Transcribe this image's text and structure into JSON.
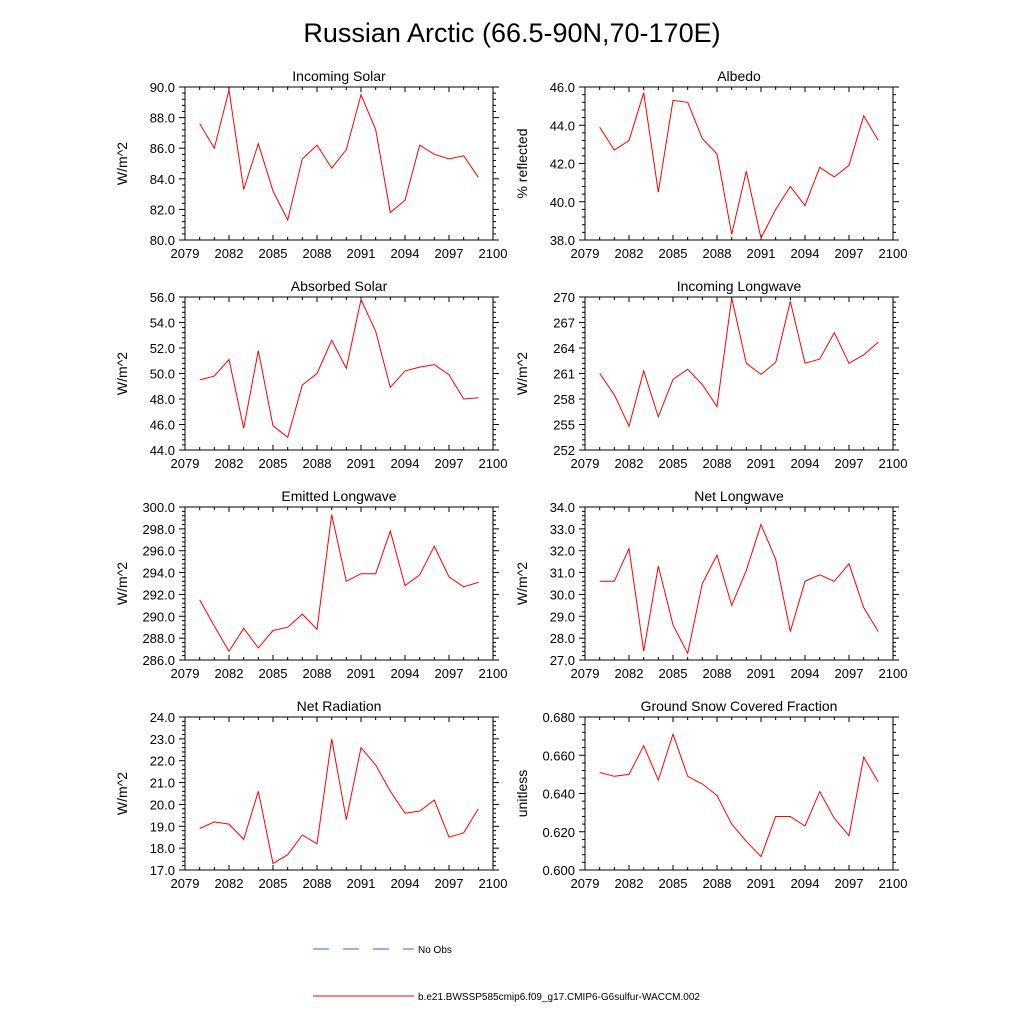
{
  "figure_title": "Russian Arctic (66.5-90N,70-170E)",
  "colors": {
    "model_line": "#ff0000",
    "obs_line": "#4b57c8",
    "axis": "#000000"
  },
  "legend": {
    "obs_label": "No Obs",
    "model_label": "b.e21.BWSSP585cmip6.f09_g17.CMIP6-G6sulfur-WACCM.002"
  },
  "chart_data": [
    {
      "type": "line",
      "title": "Incoming Solar",
      "ylabel": "W/m^2",
      "xlim": [
        2079,
        2100
      ],
      "ylim": [
        80,
        90
      ],
      "yticks": [
        80,
        82,
        84,
        86,
        88,
        90
      ],
      "ytick_labels": [
        "80.0",
        "82.0",
        "84.0",
        "86.0",
        "88.0",
        "90.0"
      ],
      "xticks": [
        2079,
        2082,
        2085,
        2088,
        2091,
        2094,
        2097,
        2100
      ],
      "x": [
        2080,
        2081,
        2082,
        2083,
        2084,
        2085,
        2086,
        2087,
        2088,
        2089,
        2090,
        2091,
        2092,
        2093,
        2094,
        2095,
        2096,
        2097,
        2098,
        2099
      ],
      "series": [
        {
          "values": [
            87.6,
            86.0,
            89.8,
            83.3,
            86.3,
            83.2,
            81.3,
            85.3,
            86.2,
            84.7,
            85.9,
            89.5,
            87.2,
            81.8,
            82.6,
            86.2,
            85.6,
            85.3,
            85.5,
            84.1
          ]
        }
      ]
    },
    {
      "type": "line",
      "title": "Albedo",
      "ylabel": "% reflected",
      "xlim": [
        2079,
        2100
      ],
      "ylim": [
        38,
        46
      ],
      "yticks": [
        38,
        40,
        42,
        44,
        46
      ],
      "ytick_labels": [
        "38.0",
        "40.0",
        "42.0",
        "44.0",
        "46.0"
      ],
      "xticks": [
        2079,
        2082,
        2085,
        2088,
        2091,
        2094,
        2097,
        2100
      ],
      "x": [
        2080,
        2081,
        2082,
        2083,
        2084,
        2085,
        2086,
        2087,
        2088,
        2089,
        2090,
        2091,
        2092,
        2093,
        2094,
        2095,
        2096,
        2097,
        2098,
        2099
      ],
      "series": [
        {
          "values": [
            43.9,
            42.7,
            43.2,
            45.7,
            40.5,
            45.3,
            45.2,
            43.3,
            42.5,
            38.3,
            41.6,
            38.1,
            39.6,
            40.8,
            39.8,
            41.8,
            41.3,
            41.9,
            44.5,
            43.2
          ]
        }
      ]
    },
    {
      "type": "line",
      "title": "Absorbed Solar",
      "ylabel": "W/m^2",
      "xlim": [
        2079,
        2100
      ],
      "ylim": [
        44,
        56
      ],
      "yticks": [
        44,
        46,
        48,
        50,
        52,
        54,
        56
      ],
      "ytick_labels": [
        "44.0",
        "46.0",
        "48.0",
        "50.0",
        "52.0",
        "54.0",
        "56.0"
      ],
      "xticks": [
        2079,
        2082,
        2085,
        2088,
        2091,
        2094,
        2097,
        2100
      ],
      "x": [
        2080,
        2081,
        2082,
        2083,
        2084,
        2085,
        2086,
        2087,
        2088,
        2089,
        2090,
        2091,
        2092,
        2093,
        2094,
        2095,
        2096,
        2097,
        2098,
        2099
      ],
      "series": [
        {
          "values": [
            49.5,
            49.8,
            51.1,
            45.7,
            51.8,
            45.9,
            45.0,
            49.1,
            50.0,
            52.6,
            50.4,
            55.8,
            53.3,
            48.9,
            50.2,
            50.5,
            50.7,
            49.9,
            48.0,
            48.1
          ]
        }
      ]
    },
    {
      "type": "line",
      "title": "Incoming Longwave",
      "ylabel": "W/m^2",
      "xlim": [
        2079,
        2100
      ],
      "ylim": [
        252,
        270
      ],
      "yticks": [
        252,
        255,
        258,
        261,
        264,
        267,
        270
      ],
      "ytick_labels": [
        "252",
        "255",
        "258",
        "261",
        "264",
        "267",
        "270"
      ],
      "xticks": [
        2079,
        2082,
        2085,
        2088,
        2091,
        2094,
        2097,
        2100
      ],
      "x": [
        2080,
        2081,
        2082,
        2083,
        2084,
        2085,
        2086,
        2087,
        2088,
        2089,
        2090,
        2091,
        2092,
        2093,
        2094,
        2095,
        2096,
        2097,
        2098,
        2099
      ],
      "series": [
        {
          "values": [
            261.0,
            258.5,
            254.8,
            261.3,
            255.9,
            260.3,
            261.5,
            259.7,
            257.1,
            269.9,
            262.2,
            260.9,
            262.3,
            269.5,
            262.2,
            262.7,
            265.8,
            262.2,
            263.2,
            264.7
          ]
        }
      ]
    },
    {
      "type": "line",
      "title": "Emitted Longwave",
      "ylabel": "W/m^2",
      "xlim": [
        2079,
        2100
      ],
      "ylim": [
        286,
        300
      ],
      "yticks": [
        286,
        288,
        290,
        292,
        294,
        296,
        298,
        300
      ],
      "ytick_labels": [
        "286.0",
        "288.0",
        "290.0",
        "292.0",
        "294.0",
        "296.0",
        "298.0",
        "300.0"
      ],
      "xticks": [
        2079,
        2082,
        2085,
        2088,
        2091,
        2094,
        2097,
        2100
      ],
      "x": [
        2080,
        2081,
        2082,
        2083,
        2084,
        2085,
        2086,
        2087,
        2088,
        2089,
        2090,
        2091,
        2092,
        2093,
        2094,
        2095,
        2096,
        2097,
        2098,
        2099
      ],
      "series": [
        {
          "values": [
            291.5,
            289.1,
            286.8,
            288.9,
            287.1,
            288.7,
            289.0,
            290.2,
            288.8,
            299.3,
            293.2,
            293.9,
            293.9,
            297.8,
            292.8,
            293.8,
            296.4,
            293.6,
            292.7,
            293.1
          ]
        }
      ]
    },
    {
      "type": "line",
      "title": "Net Longwave",
      "ylabel": "W/m^2",
      "xlim": [
        2079,
        2100
      ],
      "ylim": [
        27,
        34
      ],
      "yticks": [
        27,
        28,
        29,
        30,
        31,
        32,
        33,
        34
      ],
      "ytick_labels": [
        "27.0",
        "28.0",
        "29.0",
        "30.0",
        "31.0",
        "32.0",
        "33.0",
        "34.0"
      ],
      "xticks": [
        2079,
        2082,
        2085,
        2088,
        2091,
        2094,
        2097,
        2100
      ],
      "x": [
        2080,
        2081,
        2082,
        2083,
        2084,
        2085,
        2086,
        2087,
        2088,
        2089,
        2090,
        2091,
        2092,
        2093,
        2094,
        2095,
        2096,
        2097,
        2098,
        2099
      ],
      "series": [
        {
          "values": [
            30.6,
            30.6,
            32.1,
            27.4,
            31.3,
            28.6,
            27.3,
            30.5,
            31.8,
            29.5,
            31.1,
            33.2,
            31.6,
            28.3,
            30.6,
            30.9,
            30.6,
            31.4,
            29.4,
            28.3
          ]
        }
      ]
    },
    {
      "type": "line",
      "title": "Net Radiation",
      "ylabel": "W/m^2",
      "xlim": [
        2079,
        2100
      ],
      "ylim": [
        17,
        24
      ],
      "yticks": [
        17,
        18,
        19,
        20,
        21,
        22,
        23,
        24
      ],
      "ytick_labels": [
        "17.0",
        "18.0",
        "19.0",
        "20.0",
        "21.0",
        "22.0",
        "23.0",
        "24.0"
      ],
      "xticks": [
        2079,
        2082,
        2085,
        2088,
        2091,
        2094,
        2097,
        2100
      ],
      "x": [
        2080,
        2081,
        2082,
        2083,
        2084,
        2085,
        2086,
        2087,
        2088,
        2089,
        2090,
        2091,
        2092,
        2093,
        2094,
        2095,
        2096,
        2097,
        2098,
        2099
      ],
      "series": [
        {
          "values": [
            18.9,
            19.2,
            19.1,
            18.4,
            20.6,
            17.3,
            17.7,
            18.6,
            18.2,
            23.0,
            19.3,
            22.6,
            21.8,
            20.6,
            19.6,
            19.7,
            20.2,
            18.5,
            18.7,
            19.8
          ]
        }
      ]
    },
    {
      "type": "line",
      "title": "Ground Snow Covered Fraction",
      "ylabel": "unitless",
      "xlim": [
        2079,
        2100
      ],
      "ylim": [
        0.6,
        0.68
      ],
      "yticks": [
        0.6,
        0.62,
        0.64,
        0.66,
        0.68
      ],
      "ytick_labels": [
        "0.600",
        "0.620",
        "0.640",
        "0.660",
        "0.680"
      ],
      "xticks": [
        2079,
        2082,
        2085,
        2088,
        2091,
        2094,
        2097,
        2100
      ],
      "x": [
        2080,
        2081,
        2082,
        2083,
        2084,
        2085,
        2086,
        2087,
        2088,
        2089,
        2090,
        2091,
        2092,
        2093,
        2094,
        2095,
        2096,
        2097,
        2098,
        2099
      ],
      "series": [
        {
          "values": [
            0.651,
            0.649,
            0.65,
            0.665,
            0.647,
            0.671,
            0.649,
            0.645,
            0.639,
            0.624,
            0.615,
            0.607,
            0.628,
            0.628,
            0.623,
            0.641,
            0.627,
            0.618,
            0.659,
            0.646
          ]
        }
      ]
    }
  ]
}
